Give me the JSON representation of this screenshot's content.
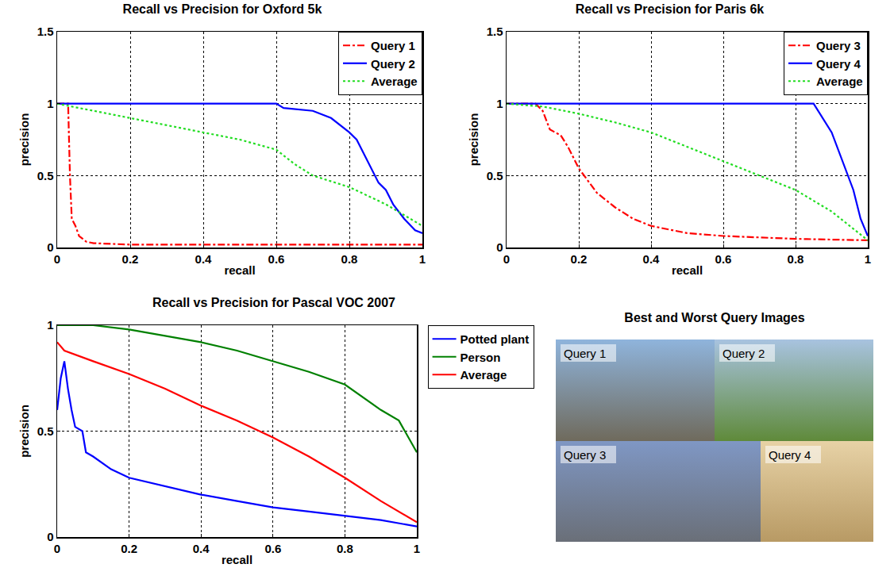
{
  "chart_data": [
    {
      "type": "line",
      "title": "Recall vs Precision for Oxford 5k",
      "x_label": "recall",
      "y_label": "precision",
      "xlim": [
        0,
        1
      ],
      "xticks": [
        0,
        0.2,
        0.4,
        0.6,
        0.8,
        1
      ],
      "ylim": [
        0,
        1.5
      ],
      "yticks": [
        0,
        0.5,
        1,
        1.5
      ],
      "grid": true,
      "legend": "top right",
      "series": [
        {
          "name": "Query 1",
          "color": "#ff0000",
          "line_style": "dashdot",
          "x": [
            0,
            0.03,
            0.035,
            0.04,
            0.05,
            0.06,
            0.08,
            0.1,
            0.2,
            0.4,
            0.6,
            0.8,
            1
          ],
          "values": [
            1,
            1,
            0.5,
            0.2,
            0.15,
            0.08,
            0.04,
            0.03,
            0.02,
            0.02,
            0.02,
            0.02,
            0.02
          ]
        },
        {
          "name": "Query 2",
          "color": "#0000ff",
          "line_style": "solid",
          "x": [
            0,
            0.6,
            0.62,
            0.7,
            0.75,
            0.8,
            0.82,
            0.85,
            0.88,
            0.9,
            0.92,
            0.95,
            0.98,
            1
          ],
          "values": [
            1,
            1,
            0.97,
            0.95,
            0.9,
            0.8,
            0.75,
            0.6,
            0.45,
            0.4,
            0.3,
            0.2,
            0.12,
            0.1
          ]
        },
        {
          "name": "Average",
          "color": "#22dd22",
          "line_style": "dotted",
          "x": [
            0,
            0.1,
            0.2,
            0.3,
            0.4,
            0.5,
            0.6,
            0.65,
            0.7,
            0.8,
            0.9,
            1
          ],
          "values": [
            1,
            0.95,
            0.9,
            0.85,
            0.8,
            0.75,
            0.68,
            0.58,
            0.5,
            0.42,
            0.3,
            0.15
          ]
        }
      ]
    },
    {
      "type": "line",
      "title": "Recall vs Precision for Paris 6k",
      "x_label": "recall",
      "y_label": "precision",
      "xlim": [
        0,
        1
      ],
      "xticks": [
        0,
        0.2,
        0.4,
        0.6,
        0.8,
        1
      ],
      "ylim": [
        0,
        1.5
      ],
      "yticks": [
        0,
        0.5,
        1,
        1.5
      ],
      "grid": true,
      "legend": "top right",
      "series": [
        {
          "name": "Query 3",
          "color": "#ff0000",
          "line_style": "dashdot",
          "x": [
            0,
            0.08,
            0.1,
            0.12,
            0.15,
            0.17,
            0.2,
            0.22,
            0.25,
            0.3,
            0.35,
            0.4,
            0.5,
            0.6,
            0.8,
            1
          ],
          "values": [
            1,
            1,
            0.95,
            0.82,
            0.78,
            0.7,
            0.55,
            0.48,
            0.38,
            0.28,
            0.2,
            0.15,
            0.1,
            0.08,
            0.06,
            0.05
          ]
        },
        {
          "name": "Query 4",
          "color": "#0000ff",
          "line_style": "solid",
          "x": [
            0,
            0.85,
            0.9,
            0.93,
            0.96,
            0.98,
            1
          ],
          "values": [
            1,
            1,
            0.8,
            0.6,
            0.4,
            0.2,
            0.08
          ]
        },
        {
          "name": "Average",
          "color": "#22dd22",
          "line_style": "dotted",
          "x": [
            0,
            0.1,
            0.2,
            0.3,
            0.4,
            0.5,
            0.6,
            0.7,
            0.8,
            0.9,
            1
          ],
          "values": [
            1,
            0.98,
            0.93,
            0.87,
            0.8,
            0.7,
            0.6,
            0.5,
            0.4,
            0.25,
            0.05
          ]
        }
      ]
    },
    {
      "type": "line",
      "title": "Recall vs Precision for Pascal VOC 2007",
      "x_label": "recall",
      "y_label": "precision",
      "xlim": [
        0,
        1
      ],
      "xticks": [
        0,
        0.2,
        0.4,
        0.6,
        0.8,
        1
      ],
      "ylim": [
        0,
        1
      ],
      "yticks": [
        0,
        0.5,
        1
      ],
      "grid": true,
      "legend": "right",
      "series": [
        {
          "name": "Potted plant",
          "color": "#0000ff",
          "line_style": "solid",
          "x": [
            0,
            0.01,
            0.02,
            0.03,
            0.04,
            0.05,
            0.07,
            0.08,
            0.1,
            0.15,
            0.2,
            0.3,
            0.4,
            0.5,
            0.6,
            0.7,
            0.8,
            0.9,
            1
          ],
          "values": [
            0.6,
            0.75,
            0.83,
            0.7,
            0.6,
            0.52,
            0.5,
            0.4,
            0.38,
            0.32,
            0.28,
            0.24,
            0.2,
            0.17,
            0.14,
            0.12,
            0.1,
            0.08,
            0.05
          ]
        },
        {
          "name": "Person",
          "color": "#008000",
          "line_style": "solid",
          "x": [
            0,
            0.1,
            0.2,
            0.3,
            0.4,
            0.5,
            0.6,
            0.7,
            0.8,
            0.9,
            0.95,
            1
          ],
          "values": [
            1,
            1,
            0.98,
            0.95,
            0.92,
            0.88,
            0.83,
            0.78,
            0.72,
            0.6,
            0.55,
            0.4
          ]
        },
        {
          "name": "Average",
          "color": "#ff0000",
          "line_style": "solid",
          "x": [
            0,
            0.02,
            0.1,
            0.2,
            0.3,
            0.4,
            0.5,
            0.6,
            0.7,
            0.8,
            0.9,
            1
          ],
          "values": [
            0.92,
            0.88,
            0.83,
            0.77,
            0.7,
            0.62,
            0.55,
            0.47,
            0.38,
            0.28,
            0.17,
            0.07
          ]
        }
      ]
    }
  ],
  "image_panel": {
    "title": "Best and Worst Query Images",
    "labels": [
      "Query 1",
      "Query 2",
      "Query 3",
      "Query 4"
    ]
  }
}
